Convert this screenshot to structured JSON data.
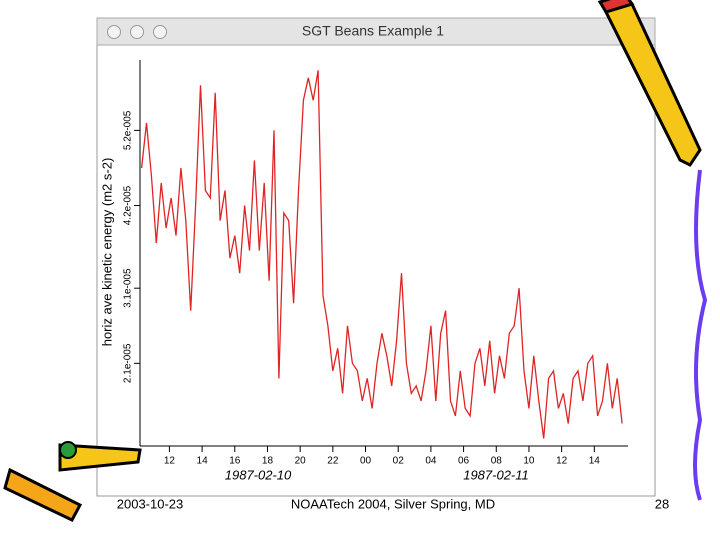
{
  "window_title": "SGT Beans Example 1",
  "chart_data": {
    "type": "line",
    "y_label": "horiz ave kinetic energy (m2 s-2)",
    "annotations": [
      "1987-02-10",
      "1987-02-11"
    ],
    "color": "#e02424",
    "x": [
      10.3,
      10.6,
      10.9,
      11.2,
      11.5,
      11.8,
      12.1,
      12.4,
      12.7,
      13.0,
      13.3,
      13.6,
      13.9,
      14.2,
      14.5,
      14.8,
      15.1,
      15.4,
      15.7,
      16.0,
      16.3,
      16.6,
      16.9,
      17.2,
      17.5,
      17.8,
      18.1,
      18.4,
      18.7,
      19.0,
      19.3,
      19.6,
      19.9,
      20.2,
      20.5,
      20.8,
      21.1,
      21.4,
      21.7,
      22.0,
      22.3,
      22.6,
      22.9,
      23.2,
      23.5,
      23.8,
      24.1,
      24.4,
      24.7,
      25.0,
      25.3,
      25.6,
      25.9,
      26.2,
      26.5,
      26.8,
      27.1,
      27.4,
      27.7,
      28.0,
      28.3,
      28.6,
      28.9,
      29.2,
      29.5,
      29.8,
      30.1,
      30.4,
      30.7,
      31.0,
      31.3,
      31.6,
      31.9,
      32.2,
      32.5,
      32.8,
      33.1,
      33.4,
      33.7,
      34.0,
      34.3,
      34.6,
      34.9,
      35.2,
      35.5,
      35.8,
      36.1,
      36.4,
      36.7,
      37.0,
      37.3,
      37.6,
      37.9,
      38.2,
      38.5,
      38.8,
      39.1,
      39.4,
      39.7
    ],
    "values": [
      4.7e-05,
      5.3e-05,
      4.6e-05,
      3.7e-05,
      4.5e-05,
      3.9e-05,
      4.3e-05,
      3.8e-05,
      4.7e-05,
      4e-05,
      2.8e-05,
      4.2e-05,
      5.8e-05,
      4.4e-05,
      4.3e-05,
      5.7e-05,
      4e-05,
      4.4e-05,
      3.5e-05,
      3.8e-05,
      3.3e-05,
      4.2e-05,
      3.6e-05,
      4.8e-05,
      3.6e-05,
      4.5e-05,
      3.2e-05,
      5.2e-05,
      1.9e-05,
      4.1e-05,
      4e-05,
      2.9e-05,
      4.4e-05,
      5.6e-05,
      5.9e-05,
      5.6e-05,
      6e-05,
      3e-05,
      2.6e-05,
      2e-05,
      2.3e-05,
      1.7e-05,
      2.6e-05,
      2.1e-05,
      2e-05,
      1.6e-05,
      1.9e-05,
      1.5e-05,
      2.1e-05,
      2.5e-05,
      2.2e-05,
      1.8e-05,
      2.4e-05,
      3.3e-05,
      2.1e-05,
      1.7e-05,
      1.8e-05,
      1.6e-05,
      2e-05,
      2.6e-05,
      1.6e-05,
      2.5e-05,
      2.8e-05,
      1.6e-05,
      1.4e-05,
      2e-05,
      1.5e-05,
      1.4e-05,
      2.1e-05,
      2.3e-05,
      1.8e-05,
      2.4e-05,
      1.7e-05,
      2.2e-05,
      1.9e-05,
      2.5e-05,
      2.6e-05,
      3.1e-05,
      2e-05,
      1.5e-05,
      2.2e-05,
      1.6e-05,
      1.1e-05,
      1.9e-05,
      2e-05,
      1.5e-05,
      1.7e-05,
      1.3e-05,
      1.9e-05,
      2e-05,
      1.6e-05,
      2.1e-05,
      2.2e-05,
      1.4e-05,
      1.6e-05,
      2.1e-05,
      1.5e-05,
      1.9e-05,
      1.3e-05
    ],
    "xlim": [
      10.2,
      40
    ],
    "xticks": [
      12,
      14,
      16,
      18,
      20,
      22,
      {
        "value": 24,
        "label": "00"
      },
      {
        "value": 26,
        "label": "02"
      },
      {
        "value": 28,
        "label": "04"
      },
      {
        "value": 30,
        "label": "06"
      },
      {
        "value": 32,
        "label": "08"
      },
      {
        "value": 34,
        "label": "10"
      },
      {
        "value": 36,
        "label": "12"
      },
      {
        "value": 38,
        "label": "14"
      }
    ],
    "ylim": [
      1e-05,
      6.07e-05
    ],
    "yticks": [
      {
        "value": 2.1e-05,
        "label": "2.1e-005"
      },
      {
        "value": 3.1e-05,
        "label": "3.1e-005"
      },
      {
        "value": 4.2e-05,
        "label": "4.2e-005"
      },
      {
        "value": 5.2e-05,
        "label": "5.2e-005"
      }
    ]
  },
  "footer": {
    "date": "2003-10-23",
    "event": "NOAATech 2004, Silver Spring, MD",
    "page": "28"
  }
}
